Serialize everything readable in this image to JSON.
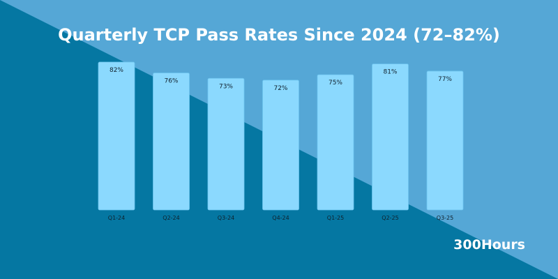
{
  "colors": {
    "background_dark": "#0577a2",
    "background_light": "#55a7d6",
    "bar": "#8bd9fe",
    "title": "#ffffff",
    "label": "#10202c"
  },
  "brand": "300Hours",
  "chart_data": {
    "type": "bar",
    "title": "Quarterly TCP Pass Rates Since 2024 (72–82%)",
    "categories": [
      "Q1-24",
      "Q2-24",
      "Q3-24",
      "Q4-24",
      "Q1-25",
      "Q2-25",
      "Q3-25"
    ],
    "values": [
      82,
      76,
      73,
      72,
      75,
      81,
      77
    ],
    "data_labels": [
      "82%",
      "76%",
      "73%",
      "72%",
      "75%",
      "81%",
      "77%"
    ],
    "xlabel": "",
    "ylabel": "",
    "ylim": [
      0,
      100
    ],
    "grid": false,
    "legend": "none"
  }
}
